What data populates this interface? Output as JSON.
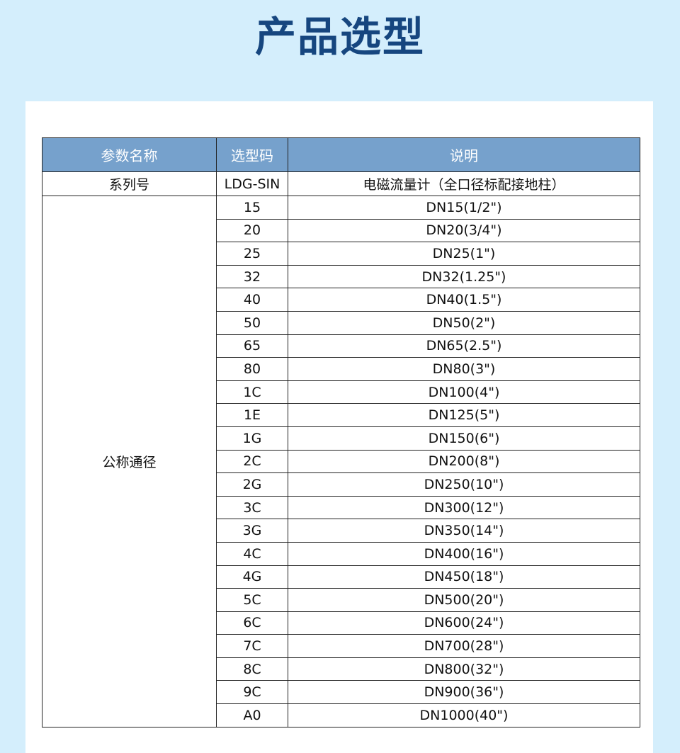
{
  "title": "产品选型",
  "headers": [
    "参数名称",
    "选型码",
    "说明"
  ],
  "series_row": {
    "param": "系列号",
    "code": "LDG-SIN",
    "desc": "电磁流量计（全口径标配接地柱）"
  },
  "diameter": {
    "param": "公称通径",
    "rows": [
      {
        "code": "15",
        "desc": "DN15(1/2\")"
      },
      {
        "code": "20",
        "desc": "DN20(3/4\")"
      },
      {
        "code": "25",
        "desc": "DN25(1\")"
      },
      {
        "code": "32",
        "desc": "DN32(1.25\")"
      },
      {
        "code": "40",
        "desc": "DN40(1.5\")"
      },
      {
        "code": "50",
        "desc": "DN50(2\")"
      },
      {
        "code": "65",
        "desc": "DN65(2.5\")"
      },
      {
        "code": "80",
        "desc": "DN80(3\")"
      },
      {
        "code": "1C",
        "desc": "DN100(4\")"
      },
      {
        "code": "1E",
        "desc": "DN125(5\")"
      },
      {
        "code": "1G",
        "desc": "DN150(6\")"
      },
      {
        "code": "2C",
        "desc": "DN200(8\")"
      },
      {
        "code": "2G",
        "desc": "DN250(10\")"
      },
      {
        "code": "3C",
        "desc": "DN300(12\")"
      },
      {
        "code": "3G",
        "desc": "DN350(14\")"
      },
      {
        "code": "4C",
        "desc": "DN400(16\")"
      },
      {
        "code": "4G",
        "desc": "DN450(18\")"
      },
      {
        "code": "5C",
        "desc": "DN500(20\")"
      },
      {
        "code": "6C",
        "desc": "DN600(24\")"
      },
      {
        "code": "7C",
        "desc": "DN700(28\")"
      },
      {
        "code": "8C",
        "desc": "DN800(32\")"
      },
      {
        "code": "9C",
        "desc": "DN900(36\")"
      },
      {
        "code": "A0",
        "desc": "DN1000(40\")"
      }
    ]
  }
}
